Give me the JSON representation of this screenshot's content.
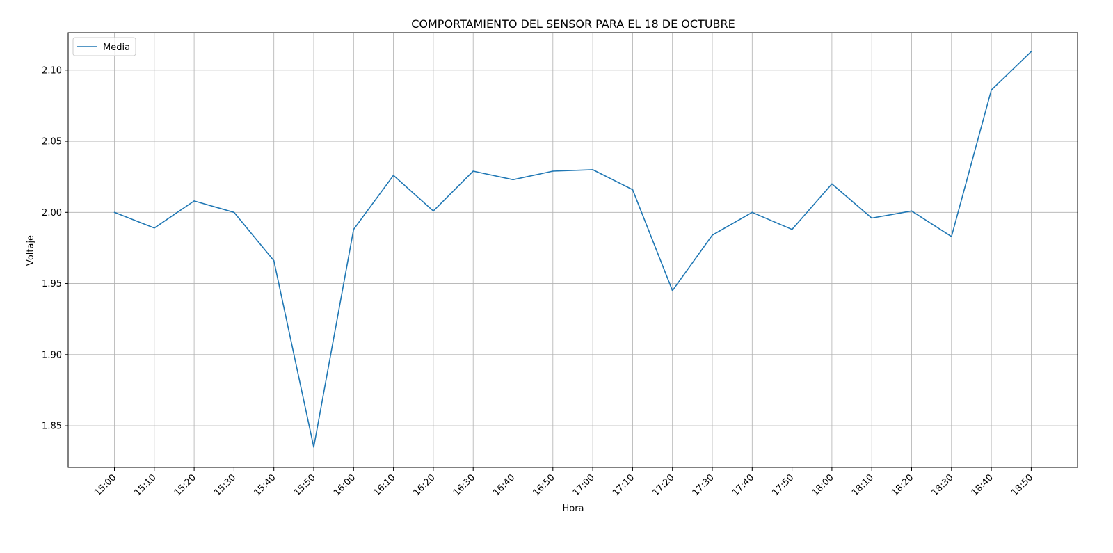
{
  "chart_data": {
    "type": "line",
    "title": "COMPORTAMIENTO DEL SENSOR PARA EL 18 DE OCTUBRE",
    "xlabel": "Hora",
    "ylabel": "Voltaje",
    "categories": [
      "15:00",
      "15:10",
      "15:20",
      "15:30",
      "15:40",
      "15:50",
      "16:00",
      "16:10",
      "16:20",
      "16:30",
      "16:40",
      "16:50",
      "17:00",
      "17:10",
      "17:20",
      "17:30",
      "17:40",
      "17:50",
      "18:00",
      "18:10",
      "18:20",
      "18:30",
      "18:40",
      "18:50"
    ],
    "series": [
      {
        "name": "Media",
        "color": "#1f77b4",
        "values": [
          2.0,
          1.989,
          2.008,
          2.0,
          1.966,
          1.835,
          1.988,
          2.026,
          2.001,
          2.029,
          2.023,
          2.029,
          2.03,
          2.016,
          1.945,
          1.984,
          2.0,
          1.988,
          2.02,
          1.996,
          2.001,
          1.983,
          2.086,
          2.113
        ]
      }
    ],
    "ylim": [
      1.8207,
      2.1263
    ],
    "yticks": [
      "1.85",
      "1.90",
      "1.95",
      "2.00",
      "2.05",
      "2.10"
    ],
    "grid": true,
    "legend": "top-left",
    "x_tick_rotation": 45
  }
}
